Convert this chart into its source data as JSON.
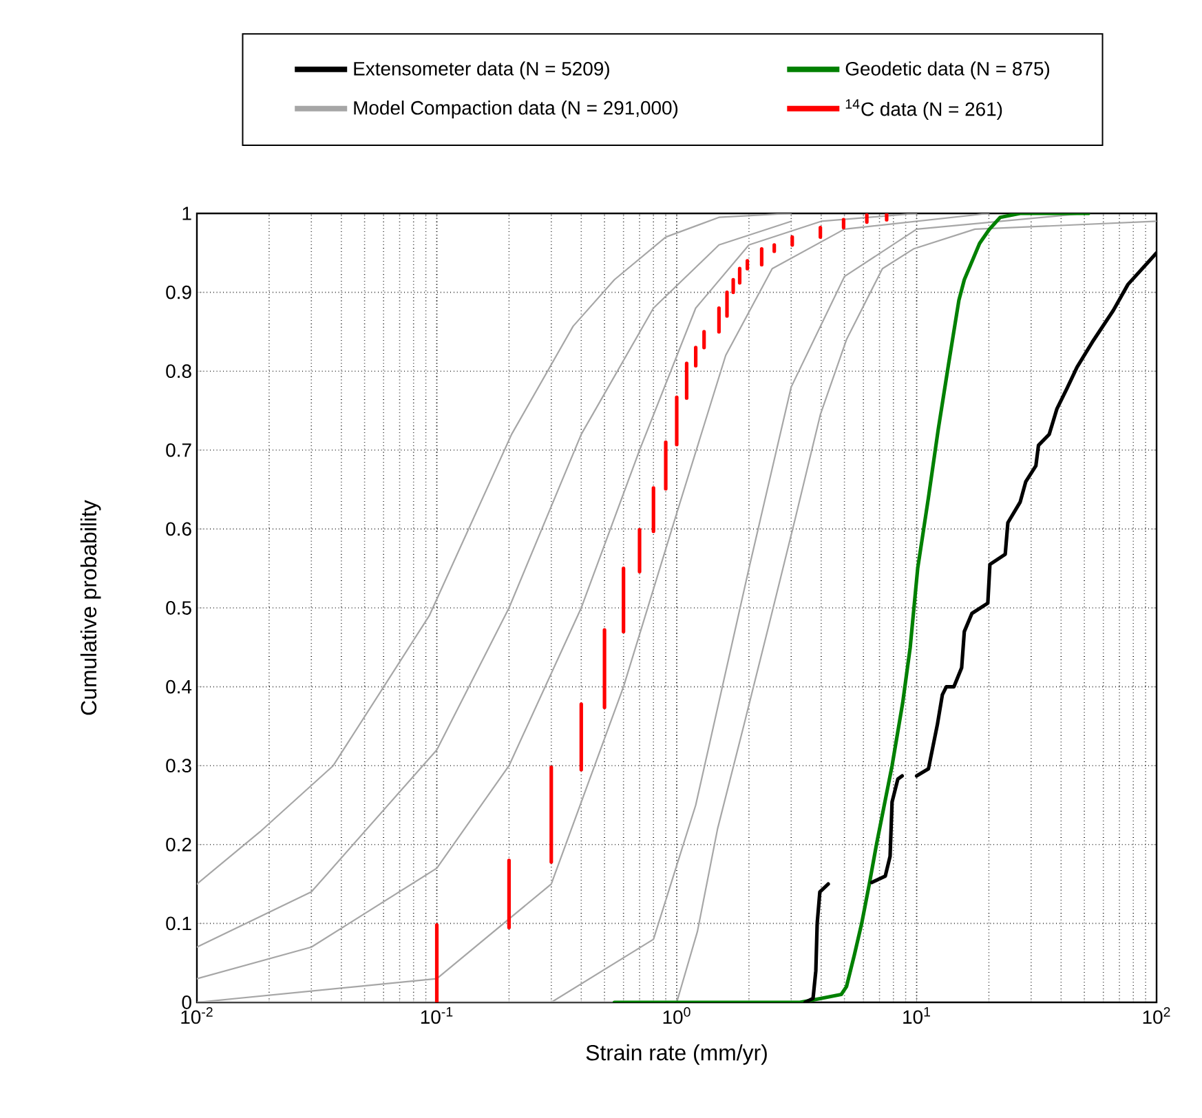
{
  "chart_data": {
    "type": "line",
    "xlabel": "Strain rate (mm/yr)",
    "ylabel": "Cumulative probability",
    "log": "x",
    "grid": true,
    "legend": "top",
    "xlim": [
      0.01,
      100
    ],
    "ylim": [
      0,
      1
    ],
    "xticks": [
      {
        "value": 0.01,
        "label": "10$^{-2}$"
      },
      {
        "value": 0.1,
        "label": "10$^{-1}$"
      },
      {
        "value": 1,
        "label": "10$^{0}$"
      },
      {
        "value": 10,
        "label": "10$^{1}$"
      },
      {
        "value": 100,
        "label": "10$^{2}$"
      }
    ],
    "yticks": [
      0,
      0.1,
      0.2,
      0.3,
      0.4,
      0.5,
      0.6,
      0.7,
      0.8,
      0.9,
      1
    ],
    "series": [
      {
        "name": "Extensometer data (N = 5209)",
        "type": "line",
        "color": "#000000",
        "x": [
          3.43,
          3.7,
          3.8,
          3.85,
          3.95,
          4.28,
          5,
          6.5,
          7.4,
          7.75,
          7.9,
          8.35,
          8.7,
          9.5,
          10,
          11.2,
          12.2,
          12.8,
          13.3,
          14.3,
          15.4,
          15.8,
          17,
          19.8,
          20.2,
          23.4,
          24,
          27,
          28.5,
          31.4,
          32.2,
          35.7,
          38.4,
          42.3,
          46.6,
          54,
          66,
          76,
          100
        ],
        "values": [
          0,
          0.005,
          0.04,
          0.1,
          0.14,
          0.15,
          null,
          0.152,
          0.16,
          0.185,
          0.254,
          0.283,
          0.287,
          null,
          0.287,
          0.296,
          0.352,
          0.39,
          0.4,
          0.4,
          0.424,
          0.47,
          0.493,
          0.506,
          0.555,
          0.568,
          0.608,
          0.634,
          0.66,
          0.68,
          0.706,
          0.72,
          0.752,
          0.778,
          0.805,
          0.837,
          0.877,
          0.91,
          0.95
        ]
      },
      {
        "name": "Geodetic data (N = 875)",
        "type": "line",
        "color": "#008000",
        "x": [
          0.55,
          1.08,
          2.6,
          3.26,
          4,
          4.85,
          5.1,
          5.5,
          5.9,
          6.35,
          6.8,
          7.9,
          8.75,
          9.4,
          10.1,
          11.2,
          12.3,
          13.6,
          15,
          15.8,
          18.3,
          20.1,
          22.3,
          27,
          52
        ],
        "values": [
          0,
          0,
          0,
          0,
          0.005,
          0.01,
          0.02,
          0.06,
          0.1,
          0.15,
          0.2,
          0.3,
          0.38,
          0.45,
          0.55,
          0.64,
          0.726,
          0.81,
          0.89,
          0.916,
          0.962,
          0.98,
          0.995,
          1,
          1
        ]
      },
      {
        "name": "Model Compaction data (N = 291,000)",
        "type": "line",
        "color": "#a6a6a6",
        "x": [
          0.01,
          0.0183,
          0.037,
          0.093,
          0.205,
          0.37,
          0.55,
          0.9,
          1.5,
          3
        ],
        "values": [
          0.15,
          0.216,
          0.3,
          0.49,
          0.72,
          0.857,
          0.916,
          0.97,
          0.995,
          1
        ]
      },
      {
        "name": "$^{14}$C data (N = 261)",
        "type": "line",
        "color": "#ff0000",
        "x": [
          0.1,
          0.1,
          null,
          0.2,
          0.2,
          null,
          0.3,
          0.3,
          null,
          0.4,
          0.4,
          null,
          0.5,
          0.5,
          null,
          0.6,
          0.6,
          null,
          0.7,
          0.7,
          null,
          0.8,
          0.8,
          null,
          0.9,
          0.9,
          null,
          1.0,
          1.0,
          null,
          1.1,
          1.1,
          null,
          1.2,
          1.2,
          null,
          1.3,
          1.3,
          null,
          1.5,
          1.5,
          null,
          1.62,
          1.62,
          null,
          1.72,
          1.72,
          null,
          1.83,
          1.83,
          null,
          1.97,
          1.97,
          null,
          2.26,
          2.26,
          null,
          2.55,
          2.55,
          null,
          3.03,
          3.03,
          null,
          3.97,
          3.97,
          null,
          4.96,
          4.96,
          null,
          6.2,
          6.2,
          null,
          7.5,
          7.5
        ],
        "values": [
          0,
          0.098,
          null,
          0.095,
          0.18,
          null,
          0.178,
          0.298,
          null,
          0.295,
          0.378,
          null,
          0.374,
          0.472,
          null,
          0.47,
          0.55,
          null,
          0.546,
          0.599,
          null,
          0.597,
          0.652,
          null,
          0.651,
          0.71,
          null,
          0.707,
          0.767,
          null,
          0.766,
          0.81,
          null,
          0.807,
          0.83,
          null,
          0.83,
          0.85,
          null,
          0.85,
          0.88,
          null,
          0.87,
          0.9,
          null,
          0.9,
          0.916,
          null,
          0.912,
          0.93,
          null,
          0.93,
          0.94,
          null,
          0.935,
          0.955,
          null,
          0.952,
          0.96,
          null,
          0.96,
          0.97,
          null,
          0.97,
          0.982,
          null,
          0.982,
          0.992,
          null,
          0.989,
          0.998,
          null,
          0.992,
          1
        ]
      },
      {
        "type": "line",
        "color": "#a6a6a6",
        "x": [
          0.01,
          0.03,
          0.1,
          0.2,
          0.4,
          0.8,
          1.5,
          3
        ],
        "values": [
          0.07,
          0.14,
          0.32,
          0.5,
          0.72,
          0.88,
          0.96,
          0.99
        ]
      },
      {
        "type": "line",
        "color": "#a6a6a6",
        "x": [
          0.01,
          0.03,
          0.1,
          0.2,
          0.4,
          0.7,
          1.2,
          2,
          4,
          10
        ],
        "values": [
          0.03,
          0.07,
          0.17,
          0.3,
          0.5,
          0.7,
          0.88,
          0.96,
          0.99,
          1
        ]
      },
      {
        "type": "line",
        "color": "#a6a6a6",
        "x": [
          0.01,
          0.1,
          0.3,
          0.6,
          1,
          1.6,
          2.5,
          5,
          20
        ],
        "values": [
          0,
          0.03,
          0.15,
          0.4,
          0.62,
          0.82,
          0.93,
          0.98,
          1
        ]
      },
      {
        "type": "line",
        "color": "#a6a6a6",
        "x": [
          0.3,
          0.8,
          1.2,
          2,
          3,
          5,
          10,
          50
        ],
        "values": [
          0,
          0.08,
          0.25,
          0.55,
          0.78,
          0.92,
          0.98,
          1
        ]
      },
      {
        "type": "line",
        "color": "#a6a6a6",
        "x": [
          0.01,
          1,
          1.22,
          1.48,
          1.9,
          2.43,
          3.1,
          3.97,
          5.1,
          7.2,
          9.7,
          17.5,
          100
        ],
        "values": [
          0,
          0,
          0.09,
          0.22,
          0.35,
          0.48,
          0.61,
          0.745,
          0.84,
          0.93,
          0.955,
          0.98,
          0.99
        ]
      }
    ]
  }
}
